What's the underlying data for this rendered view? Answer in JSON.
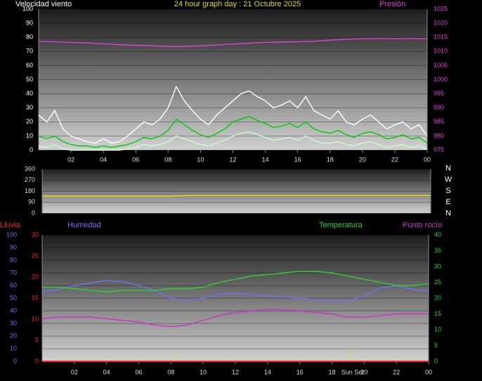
{
  "chart_data": [
    {
      "type": "line",
      "title": "24 hour graph day : 21 Octubre 2025",
      "ylabel": "Velocidad viento",
      "xlim": [
        0,
        24
      ],
      "xticks": [
        {
          "value": 2,
          "label": "02"
        },
        {
          "value": 4,
          "label": "04"
        },
        {
          "value": 6,
          "label": "06"
        },
        {
          "value": 8,
          "label": "08"
        },
        10,
        12,
        14,
        16,
        18,
        20,
        22,
        {
          "value": 24,
          "label": "00"
        }
      ],
      "ylim": [
        0,
        100
      ],
      "yticks": [
        0,
        10,
        20,
        30,
        40,
        50,
        60,
        70,
        80,
        90,
        100
      ],
      "y2lim": [
        975,
        1025
      ],
      "y2ticks": [
        975,
        980,
        985,
        990,
        995,
        1000,
        1005,
        1010,
        1015,
        1020,
        1025
      ],
      "grid": true,
      "series": [
        {
          "color": "#ffffff",
          "x": [
            0,
            0.5,
            1,
            1.5,
            2,
            2.5,
            3,
            3.5,
            4,
            4.5,
            5,
            5.5,
            6,
            6.5,
            7,
            7.5,
            8,
            8.5,
            9,
            9.5,
            10,
            10.5,
            11,
            11.5,
            12,
            12.5,
            13,
            13.5,
            14,
            14.5,
            15,
            15.5,
            16,
            16.5,
            17,
            17.5,
            18,
            18.5,
            19,
            19.5,
            20,
            20.5,
            21,
            21.5,
            22,
            22.5,
            23,
            23.5,
            24
          ],
          "values": [
            25,
            20,
            28,
            15,
            10,
            8,
            6,
            5,
            8,
            5,
            6,
            10,
            15,
            20,
            18,
            22,
            30,
            45,
            35,
            28,
            22,
            18,
            25,
            30,
            35,
            40,
            42,
            38,
            35,
            30,
            32,
            35,
            30,
            38,
            28,
            25,
            22,
            28,
            20,
            18,
            22,
            25,
            20,
            15,
            18,
            20,
            15,
            18,
            10
          ]
        },
        {
          "color": "#00cc00",
          "x": [
            0,
            0.5,
            1,
            1.5,
            2,
            2.5,
            3,
            3.5,
            4,
            4.5,
            5,
            5.5,
            6,
            6.5,
            7,
            7.5,
            8,
            8.5,
            9,
            9.5,
            10,
            10.5,
            11,
            11.5,
            12,
            12.5,
            13,
            13.5,
            14,
            14.5,
            15,
            15.5,
            16,
            16.5,
            17,
            17.5,
            18,
            18.5,
            19,
            19.5,
            20,
            20.5,
            21,
            21.5,
            22,
            22.5,
            23,
            23.5,
            24
          ],
          "values": [
            10,
            8,
            10,
            6,
            4,
            3,
            3,
            2,
            3,
            2,
            3,
            4,
            6,
            9,
            8,
            10,
            14,
            22,
            18,
            14,
            11,
            9,
            12,
            15,
            20,
            22,
            24,
            21,
            19,
            16,
            17,
            19,
            16,
            20,
            15,
            13,
            12,
            14,
            11,
            9,
            12,
            13,
            11,
            8,
            9,
            11,
            8,
            9,
            5
          ]
        },
        {
          "color": "#ccffcc",
          "x": [
            0,
            0.5,
            1,
            1.5,
            2,
            2.5,
            3,
            3.5,
            4,
            4.5,
            5,
            5.5,
            6,
            6.5,
            7,
            7.5,
            8,
            8.5,
            9,
            9.5,
            10,
            10.5,
            11,
            11.5,
            12,
            12.5,
            13,
            13.5,
            14,
            14.5,
            15,
            15.5,
            16,
            16.5,
            17,
            17.5,
            18,
            18.5,
            19,
            19.5,
            20,
            20.5,
            21,
            21.5,
            22,
            22.5,
            23,
            23.5,
            24
          ],
          "values": [
            3,
            2,
            4,
            1,
            0,
            0,
            0,
            0,
            0,
            0,
            0,
            1,
            2,
            4,
            3,
            4,
            6,
            10,
            8,
            6,
            4,
            3,
            5,
            7,
            10,
            12,
            13,
            11,
            9,
            7,
            8,
            9,
            7,
            10,
            7,
            5,
            5,
            6,
            4,
            3,
            5,
            6,
            4,
            2,
            3,
            4,
            2,
            3,
            1
          ]
        },
        {
          "name": "Presión",
          "color": "#e040e0",
          "axis": "y2",
          "x": [
            0,
            1,
            2,
            3,
            4,
            5,
            6,
            7,
            8,
            9,
            10,
            11,
            12,
            13,
            14,
            15,
            16,
            17,
            18,
            19,
            20,
            21,
            22,
            23,
            24
          ],
          "values": [
            1013.5,
            1013.4,
            1013.2,
            1013,
            1012.7,
            1012.4,
            1012.2,
            1012,
            1011.8,
            1011.8,
            1012,
            1012.3,
            1012.6,
            1012.9,
            1013.2,
            1013.3,
            1013.4,
            1013.6,
            1014,
            1014.3,
            1014.5,
            1014.6,
            1014.5,
            1014.6,
            1014.5
          ]
        }
      ]
    },
    {
      "type": "line",
      "xlim": [
        0,
        24
      ],
      "ylim": [
        0,
        360
      ],
      "yticks": [
        0,
        90,
        180,
        270,
        360
      ],
      "grid": true,
      "compass": [
        "N",
        "W",
        "S",
        "E",
        "N"
      ],
      "series": [
        {
          "color": "#e0e000",
          "x": [
            0,
            1,
            2,
            3,
            4,
            5,
            6,
            7,
            8,
            9,
            10,
            11,
            12,
            13,
            14,
            15,
            16,
            17,
            18,
            19,
            20,
            21,
            22,
            23,
            24
          ],
          "values": [
            140,
            140,
            140,
            140,
            140,
            140,
            140,
            140,
            140,
            145,
            145,
            145,
            145,
            145,
            145,
            145,
            145,
            145,
            145,
            145,
            145,
            145,
            145,
            145,
            145
          ]
        }
      ]
    },
    {
      "type": "line",
      "xlim": [
        0,
        24
      ],
      "xticks": [
        {
          "value": 2,
          "label": "02"
        },
        {
          "value": 4,
          "label": "04"
        },
        {
          "value": 6,
          "label": "06"
        },
        {
          "value": 8,
          "label": "08"
        },
        10,
        12,
        14,
        16,
        18,
        20,
        22,
        {
          "value": 24,
          "label": "00"
        }
      ],
      "ylim": [
        0,
        100
      ],
      "yticks": [
        0,
        10,
        20,
        30,
        40,
        50,
        60,
        70,
        80,
        90,
        100
      ],
      "y2lim": [
        0,
        40
      ],
      "y2ticks": [
        0,
        5,
        10,
        15,
        20,
        25,
        30,
        35,
        40
      ],
      "y3lim": [
        0,
        30
      ],
      "y3ticks": [
        0,
        5,
        10,
        15,
        20,
        25,
        30
      ],
      "grid": true,
      "markers": [
        8.3,
        19.1
      ],
      "marker_label": "Sun Set",
      "series": [
        {
          "name": "Lluvia",
          "color": "#ff2020",
          "axis": "y3",
          "x": [
            0,
            1,
            2,
            3,
            4,
            5,
            6,
            7,
            8,
            9,
            10,
            11,
            12,
            13,
            14,
            15,
            16,
            17,
            18,
            19,
            20,
            21,
            22,
            23,
            24
          ],
          "values": [
            0,
            0,
            0,
            0,
            0,
            0,
            0,
            0,
            0,
            0,
            0,
            0,
            0,
            0,
            0,
            0,
            0,
            0,
            0,
            0,
            0,
            0,
            0,
            0,
            0
          ]
        },
        {
          "name": "Humedad",
          "color": "#7070ff",
          "x": [
            0,
            1,
            2,
            3,
            4,
            5,
            6,
            7,
            8,
            9,
            10,
            11,
            12,
            13,
            14,
            15,
            16,
            17,
            18,
            19,
            20,
            21,
            22,
            23,
            24
          ],
          "values": [
            55,
            57,
            60,
            62,
            64,
            63,
            60,
            56,
            50,
            48,
            50,
            53,
            54,
            53,
            52,
            51,
            50,
            49,
            48,
            48,
            52,
            58,
            60,
            57,
            56
          ]
        },
        {
          "name": "Temperatura",
          "color": "#30d030",
          "axis": "y2",
          "x": [
            0,
            1,
            2,
            3,
            4,
            5,
            6,
            7,
            8,
            9,
            10,
            11,
            12,
            13,
            14,
            15,
            16,
            17,
            18,
            19,
            20,
            21,
            22,
            23,
            24
          ],
          "values": [
            23.5,
            23.5,
            23,
            22.5,
            22,
            22.5,
            22.5,
            22.5,
            23,
            23,
            23.5,
            25,
            26,
            27,
            27.5,
            28,
            28.5,
            28.5,
            28,
            27,
            26,
            25,
            24,
            24,
            24.5
          ]
        },
        {
          "name": "Punto rocío",
          "color": "#d030d0",
          "axis": "y2",
          "x": [
            0,
            1,
            2,
            3,
            4,
            5,
            6,
            7,
            8,
            9,
            10,
            11,
            12,
            13,
            14,
            15,
            16,
            17,
            18,
            19,
            20,
            21,
            22,
            23,
            24
          ],
          "values": [
            13.5,
            14,
            14,
            14,
            13.5,
            13,
            12.5,
            11.5,
            11,
            11.5,
            13,
            14.5,
            15.5,
            16,
            16.5,
            16.5,
            16,
            15.5,
            15,
            14,
            14,
            14.5,
            15,
            15,
            15
          ]
        }
      ]
    }
  ]
}
